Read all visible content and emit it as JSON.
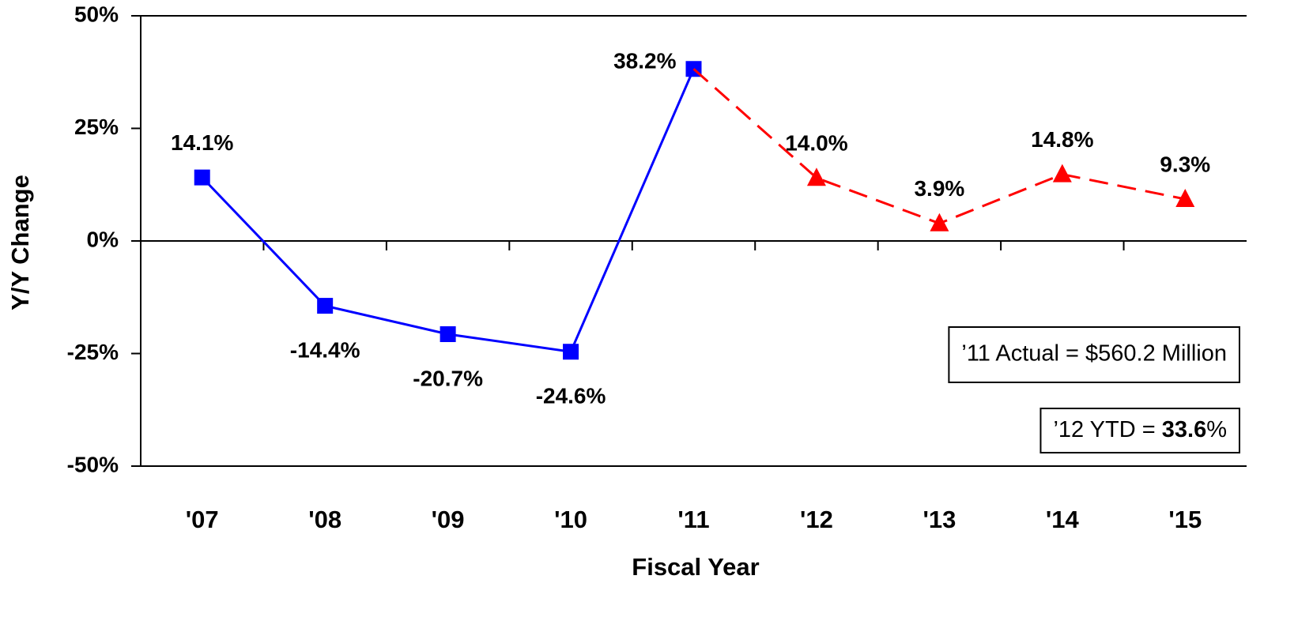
{
  "chart_data": {
    "type": "line",
    "x_label": "Fiscal Year",
    "y_label": "Y/Y Change",
    "categories": [
      "'07",
      "'08",
      "'09",
      "'10",
      "'11",
      "'12",
      "'13",
      "'14",
      "'15"
    ],
    "series": [
      {
        "color": "#0000ff",
        "line_style": "solid",
        "marker": "square",
        "values": [
          14.1,
          -14.4,
          -20.7,
          -24.6,
          38.2,
          null,
          null,
          null,
          null
        ],
        "value_labels": [
          "14.1%",
          "-14.4%",
          "-20.7%",
          "-24.6%",
          "38.2%",
          null,
          null,
          null,
          null
        ]
      },
      {
        "color": "#ff0000",
        "line_style": "dashed",
        "marker": "triangle",
        "values": [
          null,
          null,
          null,
          null,
          38.2,
          14.0,
          3.9,
          14.8,
          9.3
        ],
        "value_labels": [
          null,
          null,
          null,
          null,
          null,
          "14.0%",
          "3.9%",
          "14.8%",
          "9.3%"
        ]
      }
    ],
    "ylim": [
      -50,
      50
    ],
    "yticks": [
      {
        "value": -50,
        "label": "-50%"
      },
      {
        "value": -25,
        "label": "-25%"
      },
      {
        "value": 0,
        "label": "0%"
      },
      {
        "value": 25,
        "label": "25%"
      },
      {
        "value": 50,
        "label": "50%"
      }
    ],
    "grid": false,
    "annotations": [
      {
        "text": "’11 Actual = $560.2 Million"
      },
      {
        "parts": [
          "’12 YTD = ",
          "33.6",
          "%"
        ]
      }
    ]
  }
}
